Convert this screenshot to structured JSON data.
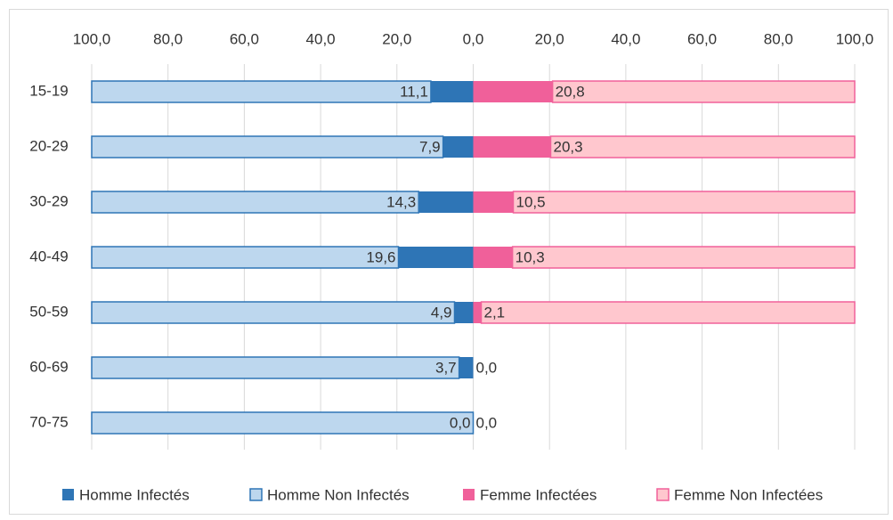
{
  "chart_data": {
    "type": "butterfly-bar",
    "categories": [
      "15-19",
      "20-29",
      "30-29",
      "40-49",
      "50-59",
      "60-69",
      "70-75"
    ],
    "series": [
      {
        "name": "Homme Infectés",
        "color": "#2e75b6",
        "side": "left",
        "values": [
          11.1,
          7.9,
          14.3,
          19.6,
          4.9,
          3.7,
          0.0
        ],
        "value_labels": [
          "11,1",
          "7,9",
          "14,3",
          "19,6",
          "4,9",
          "3,7",
          "0,0"
        ]
      },
      {
        "name": "Homme Non Infectés",
        "color": "#bdd7ee",
        "edge": "#2e75b6",
        "side": "left",
        "values": [
          88.9,
          92.1,
          85.7,
          80.4,
          95.1,
          96.3,
          100.0
        ]
      },
      {
        "name": "Femme Infectées",
        "color": "#f0609a",
        "side": "right",
        "values": [
          20.8,
          20.3,
          10.5,
          10.3,
          2.1,
          0.0,
          0.0
        ],
        "value_labels": [
          "20,8",
          "20,3",
          "10,5",
          "10,3",
          "2,1",
          "0,0",
          "0,0"
        ]
      },
      {
        "name": "Femme Non Infectées",
        "color": "#ffc7ce",
        "edge": "#f0609a",
        "side": "right",
        "values": [
          79.2,
          79.7,
          89.5,
          89.7,
          97.9,
          0.0,
          0.0
        ]
      }
    ],
    "xlim": [
      -100,
      100
    ],
    "xticks": [
      {
        "value": -100,
        "label": "100,0"
      },
      {
        "value": -80,
        "label": "80,0"
      },
      {
        "value": -60,
        "label": "60,0"
      },
      {
        "value": -40,
        "label": "40,0"
      },
      {
        "value": -20,
        "label": "20,0"
      },
      {
        "value": 0,
        "label": "0,0"
      },
      {
        "value": 20,
        "label": "20,0"
      },
      {
        "value": 40,
        "label": "40,0"
      },
      {
        "value": 60,
        "label": "60,0"
      },
      {
        "value": 80,
        "label": "80,0"
      },
      {
        "value": 100,
        "label": "100,0"
      }
    ],
    "grid": true,
    "legend": "bottom"
  }
}
